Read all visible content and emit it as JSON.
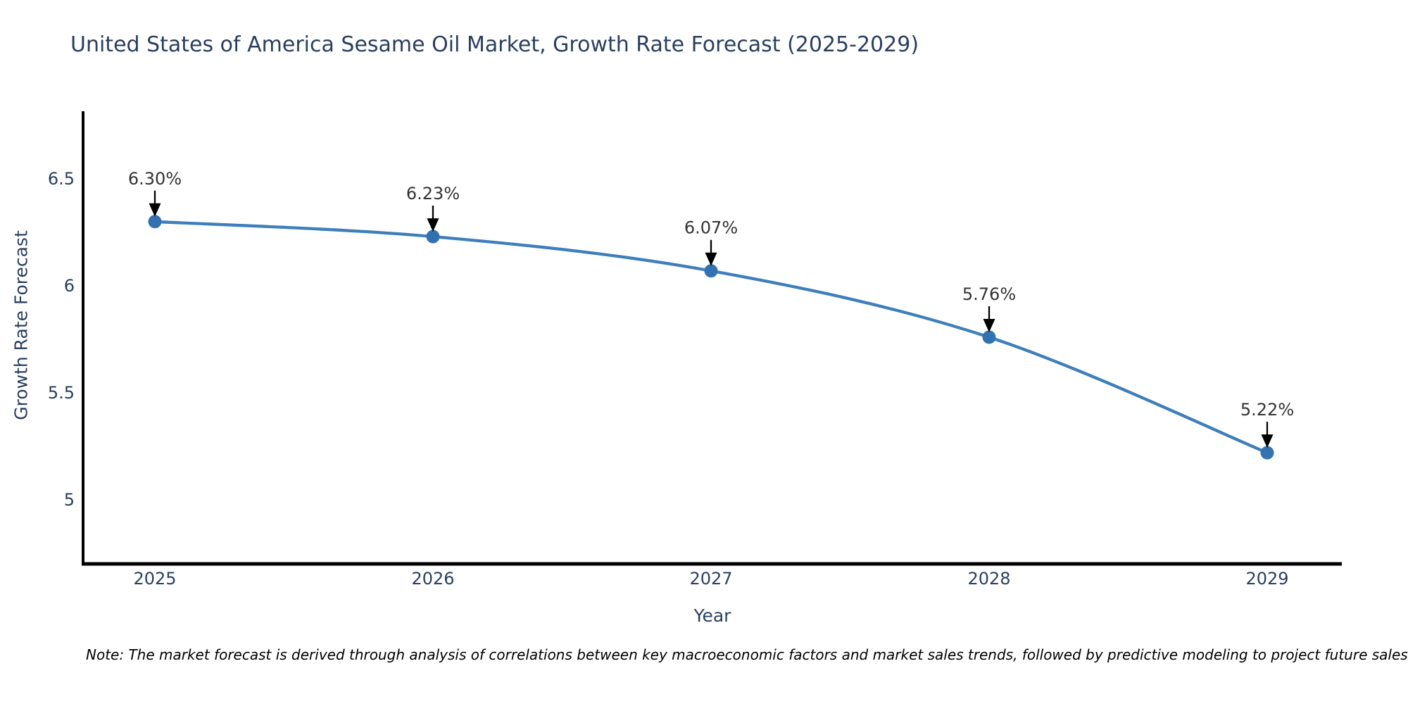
{
  "page": {
    "note": "Note: The market forecast is derived through analysis of correlations between key macroeconomic factors and market sales trends, followed by predictive modeling to project future sales"
  },
  "chart_data": {
    "type": "line",
    "title": "United States of America Sesame Oil Market, Growth Rate Forecast (2025-2029)",
    "xlabel": "Year",
    "ylabel": "Growth Rate Forecast",
    "categories": [
      "2025",
      "2026",
      "2027",
      "2028",
      "2029"
    ],
    "values": [
      6.3,
      6.23,
      6.07,
      5.76,
      5.22
    ],
    "point_labels": [
      "6.30%",
      "6.23%",
      "6.07%",
      "5.76%",
      "5.22%"
    ],
    "yticks": [
      6.5,
      6,
      5.5,
      5
    ],
    "ylim": [
      4.69,
      6.82
    ],
    "grid": false,
    "legend": false,
    "line_shape": "spline",
    "colors": {
      "line": "#3e7fbb",
      "marker": "#3372b0",
      "axis": "#000000",
      "tick_text": "#2a3f5f",
      "annotation_text": "#333333",
      "arrow": "#000000"
    }
  }
}
